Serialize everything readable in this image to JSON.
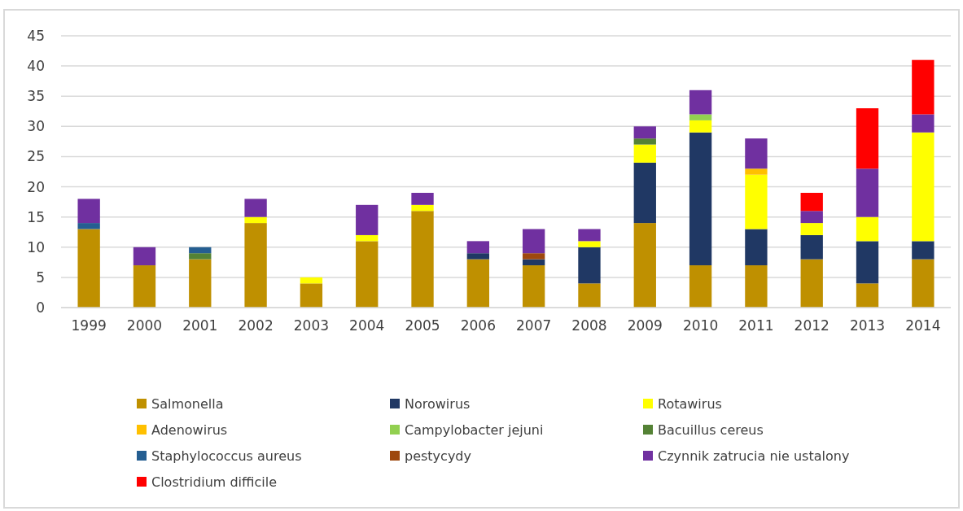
{
  "chart_data": {
    "type": "bar",
    "stacked": true,
    "categories": [
      "1999",
      "2000",
      "2001",
      "2002",
      "2003",
      "2004",
      "2005",
      "2006",
      "2007",
      "2008",
      "2009",
      "2010",
      "2011",
      "2012",
      "2013",
      "2014"
    ],
    "series": [
      {
        "name": "Salmonella",
        "color": "#bf9000",
        "values": [
          13,
          7,
          8,
          14,
          4,
          11,
          16,
          8,
          7,
          4,
          14,
          7,
          7,
          8,
          4,
          8
        ]
      },
      {
        "name": "Norowirus",
        "color": "#203864",
        "values": [
          0,
          0,
          0,
          0,
          0,
          0,
          0,
          1,
          1,
          6,
          10,
          22,
          6,
          4,
          7,
          3
        ]
      },
      {
        "name": "Rotawirus",
        "color": "#ffff00",
        "values": [
          0,
          0,
          0,
          1,
          1,
          1,
          1,
          0,
          0,
          1,
          3,
          2,
          9,
          2,
          4,
          18
        ]
      },
      {
        "name": "Adenowirus",
        "color": "#ffc000",
        "values": [
          0,
          0,
          0,
          0,
          0,
          0,
          0,
          0,
          0,
          0,
          0,
          0,
          1,
          0,
          0,
          0
        ]
      },
      {
        "name": "Campylobacter jejuni",
        "color": "#92d050",
        "values": [
          0,
          0,
          0,
          0,
          0,
          0,
          0,
          0,
          0,
          0,
          0,
          1,
          0,
          0,
          0,
          0
        ]
      },
      {
        "name": "Bacuillus cereus",
        "color": "#548235",
        "values": [
          0,
          0,
          1,
          0,
          0,
          0,
          0,
          0,
          0,
          0,
          1,
          0,
          0,
          0,
          0,
          0
        ]
      },
      {
        "name": "Staphylococcus aureus",
        "color": "#255e91",
        "values": [
          1,
          0,
          1,
          0,
          0,
          0,
          0,
          0,
          0,
          0,
          0,
          0,
          0,
          0,
          0,
          0
        ]
      },
      {
        "name": "pestycydy",
        "color": "#9e480e",
        "values": [
          0,
          0,
          0,
          0,
          0,
          0,
          0,
          0,
          1,
          0,
          0,
          0,
          0,
          0,
          0,
          0
        ]
      },
      {
        "name": "Czynnik zatrucia nie ustalony",
        "color": "#7030a0",
        "values": [
          4,
          3,
          0,
          3,
          0,
          5,
          2,
          2,
          4,
          2,
          2,
          4,
          5,
          2,
          8,
          3
        ]
      },
      {
        "name": "Clostridium difficile",
        "color": "#ff0000",
        "values": [
          0,
          0,
          0,
          0,
          0,
          0,
          0,
          0,
          0,
          0,
          0,
          0,
          0,
          3,
          10,
          9
        ]
      }
    ],
    "ylim": [
      0,
      45
    ],
    "yticks": [
      0,
      5,
      10,
      15,
      20,
      25,
      30,
      35,
      40,
      45
    ],
    "grid": "y",
    "legend": "bottom"
  }
}
